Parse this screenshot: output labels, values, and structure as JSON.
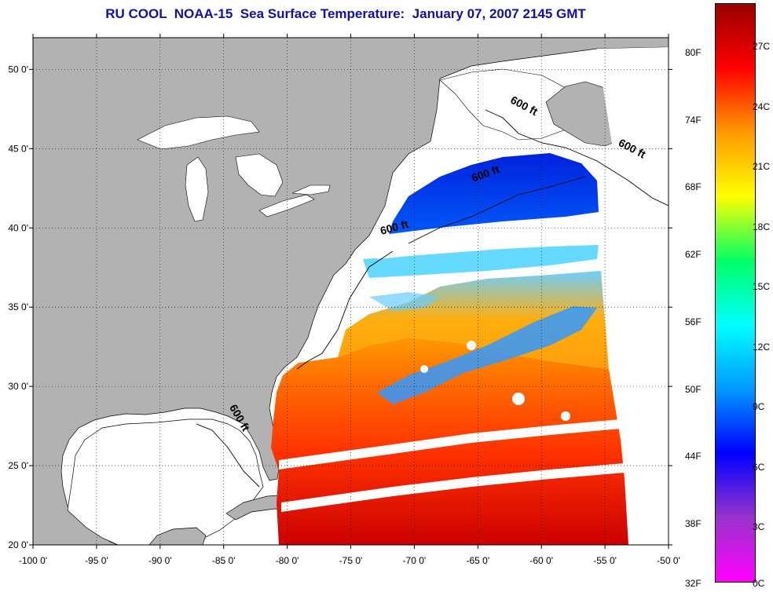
{
  "title": "RU COOL  NOAA-15  Sea Surface Temperature:  January 07, 2007 2145 GMT",
  "map": {
    "lon_range": [
      -100,
      -50
    ],
    "lat_range": [
      20,
      52
    ],
    "lon_ticks": [
      {
        "value": -100,
        "label": "-100 0'"
      },
      {
        "value": -95,
        "label": "-95 0'"
      },
      {
        "value": -90,
        "label": "-90 0'"
      },
      {
        "value": -85,
        "label": "-85 0'"
      },
      {
        "value": -80,
        "label": "-80 0'"
      },
      {
        "value": -75,
        "label": "-75 0'"
      },
      {
        "value": -70,
        "label": "-70 0'"
      },
      {
        "value": -65,
        "label": "-65 0'"
      },
      {
        "value": -60,
        "label": "-60 0'"
      },
      {
        "value": -55,
        "label": "-55 0'"
      },
      {
        "value": -50,
        "label": "-50 0'"
      }
    ],
    "lat_ticks": [
      {
        "value": 20,
        "label": "20 0'"
      },
      {
        "value": 25,
        "label": "25 0'"
      },
      {
        "value": 30,
        "label": "30 0'"
      },
      {
        "value": 35,
        "label": "35 0'"
      },
      {
        "value": 40,
        "label": "40 0'"
      },
      {
        "value": 45,
        "label": "45 0'"
      },
      {
        "value": 50,
        "label": "50 0'"
      }
    ],
    "contour_labels": [
      {
        "text": "600 ft",
        "lon": -61.5,
        "lat": 47.5
      },
      {
        "text": "600 ft",
        "lon": -53.0,
        "lat": 44.8
      },
      {
        "text": "600 ft",
        "lon": -64.3,
        "lat": 43.2
      },
      {
        "text": "600 ft",
        "lon": -71.5,
        "lat": 39.8
      },
      {
        "text": "600 ft",
        "lon": -84.0,
        "lat": 27.9
      }
    ],
    "colors": {
      "land": "#b2b2b2",
      "no_data": "#ffffff",
      "coast": "#000000"
    }
  },
  "colorbar": {
    "fahrenheit_labels": [
      "80F",
      "74F",
      "68F",
      "62F",
      "56F",
      "50F",
      "44F",
      "38F",
      "32F"
    ],
    "celsius_labels": [
      "27C",
      "24C",
      "21C",
      "18C",
      "15C",
      "12C",
      "9C",
      "6C",
      "3C",
      "0C"
    ],
    "color_stops": [
      "#ff00ff",
      "#9933cc",
      "#0000ff",
      "#0099ff",
      "#00ffff",
      "#00ff66",
      "#ffff00",
      "#ff9900",
      "#ff0000",
      "#990000"
    ]
  }
}
